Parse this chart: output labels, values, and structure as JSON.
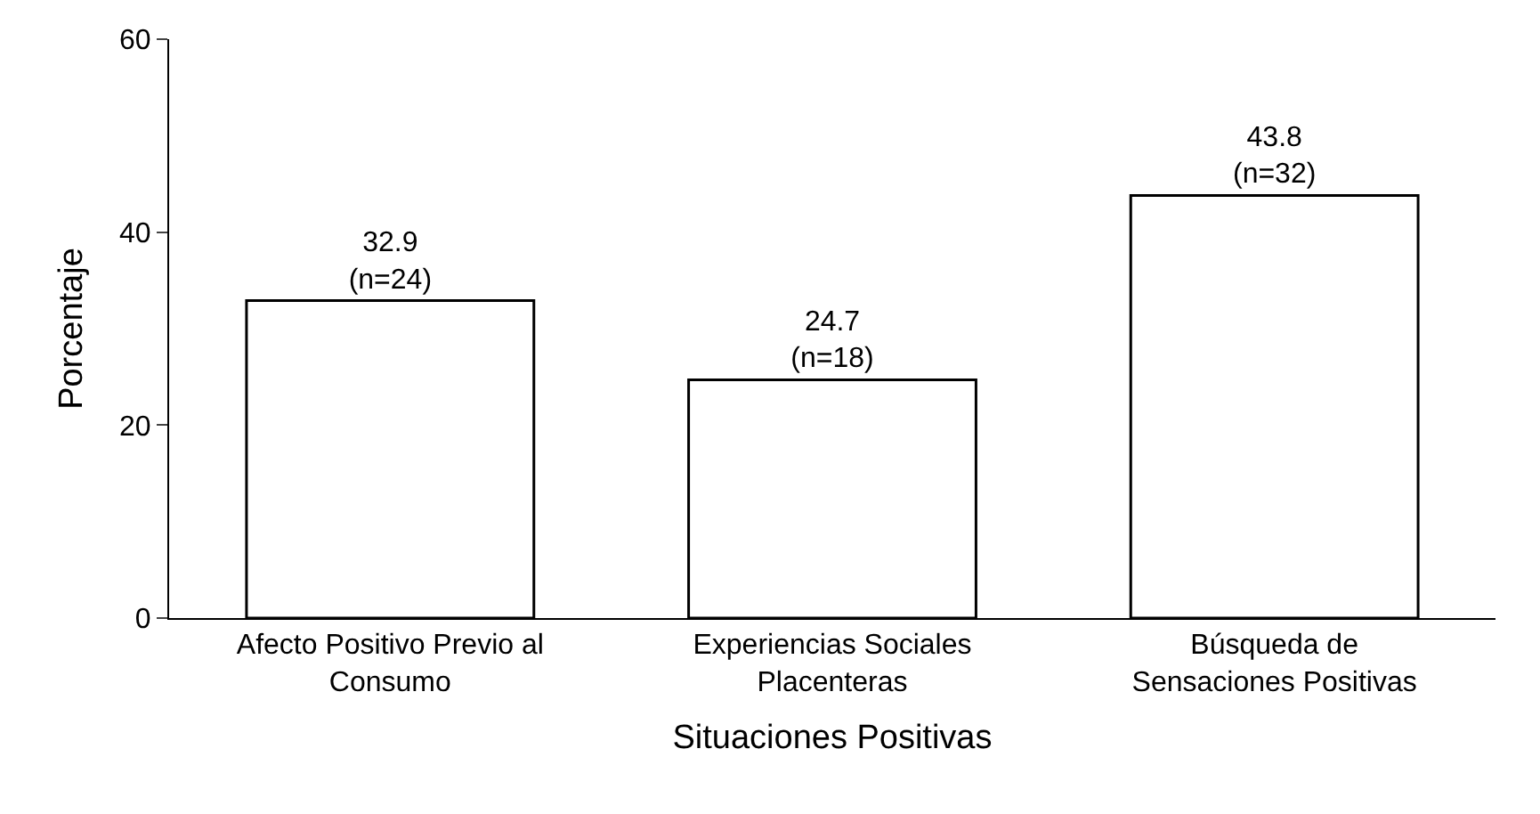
{
  "chart_data": {
    "type": "bar",
    "categories": [
      "Afecto Positivo Previo al\nConsumo",
      "Experiencias Sociales\nPlacenteras",
      "Búsqueda de\nSensaciones Positivas"
    ],
    "values": [
      32.9,
      24.7,
      43.8
    ],
    "value_labels": [
      "32.9\n(n=24)",
      "24.7\n(n=18)",
      "43.8\n(n=32)"
    ],
    "color": "#ffffff",
    "xlabel": "Situaciones Positivas",
    "ylabel": "Porcentaje",
    "ylim": [
      0,
      60
    ],
    "yticks": [
      0,
      20,
      40,
      60
    ]
  }
}
